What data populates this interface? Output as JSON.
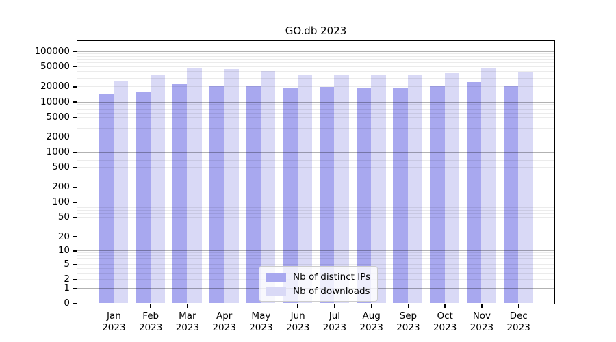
{
  "chart_data": {
    "type": "bar",
    "title": "GO.db 2023",
    "xlabel": "",
    "ylabel": "",
    "y_scale": "log1p",
    "ylim": [
      0,
      160000
    ],
    "y_ticks": [
      100000,
      50000,
      20000,
      10000,
      5000,
      2000,
      1000,
      500,
      200,
      100,
      50,
      20,
      10,
      5,
      2,
      1,
      0
    ],
    "grid": {
      "minor_log_grid": true,
      "major_decades": [
        1,
        10,
        100,
        1000,
        10000,
        100000
      ]
    },
    "categories": [
      "Jan",
      "Feb",
      "Mar",
      "Apr",
      "May",
      "Jun",
      "Jul",
      "Aug",
      "Sep",
      "Oct",
      "Nov",
      "Dec"
    ],
    "category_year": "2023",
    "series": [
      {
        "name": "Nb of distinct IPs",
        "color": "#a8a8ef",
        "values": [
          13900,
          16000,
          22000,
          20000,
          20500,
          18300,
          19800,
          18500,
          18800,
          21100,
          24500,
          21100
        ]
      },
      {
        "name": "Nb of downloads",
        "color": "#d9d9f6",
        "values": [
          26100,
          33500,
          46200,
          43900,
          40800,
          33000,
          34800,
          33800,
          33000,
          37100,
          45800,
          38600
        ]
      }
    ],
    "legend_position": "bottom-center"
  }
}
